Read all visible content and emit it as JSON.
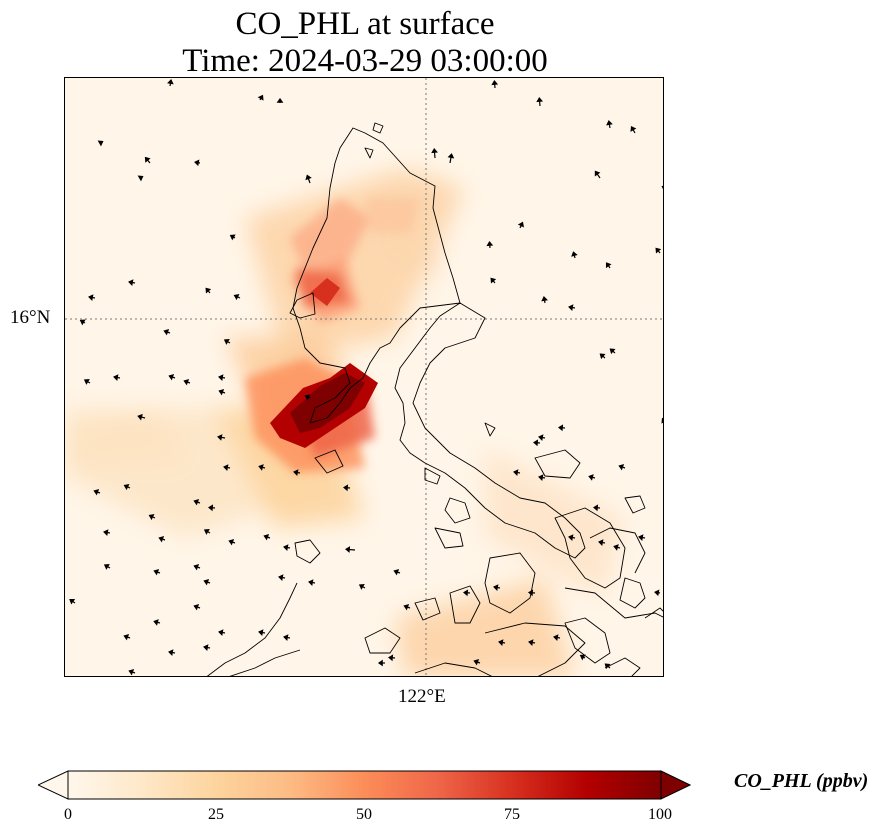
{
  "title": {
    "line1": "CO_PHL at surface",
    "line2": "Time: 2024-03-29 03:00:00"
  },
  "axes": {
    "lat_label": "16°N",
    "lon_label": "122°E"
  },
  "colorbar": {
    "label": "CO_PHL (ppbv)",
    "ticks": [
      "0",
      "25",
      "50",
      "75",
      "100"
    ],
    "extend": "both",
    "colormap": "OrRd",
    "stops": [
      "#fff7ec",
      "#fee8c8",
      "#fdd49e",
      "#fdbb84",
      "#fc8d59",
      "#ef6548",
      "#d7301f",
      "#b30000",
      "#7f0000"
    ]
  },
  "map": {
    "gridlines": "dotted",
    "coastline_color": "#000000",
    "background_color": "#fff6e9"
  }
}
